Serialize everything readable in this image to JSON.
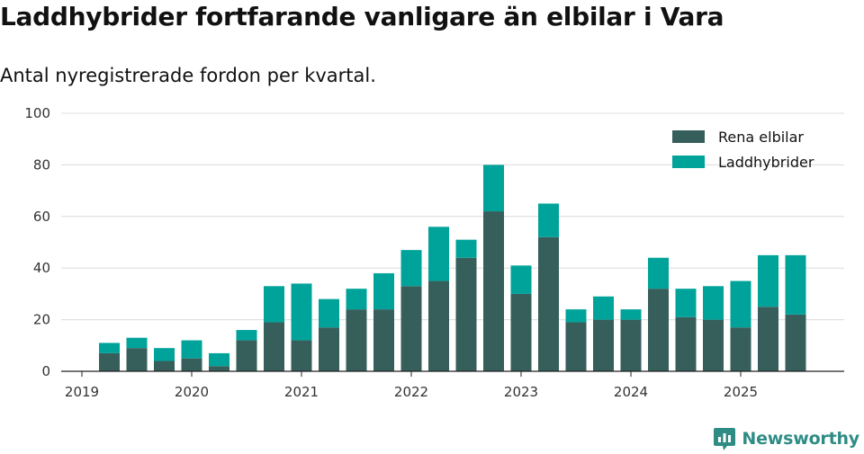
{
  "title": "Laddhybrider fortfarande vanligare än elbilar i Vara",
  "subtitle": "Antal nyregistrerade fordon per kvartal.",
  "brand": "Newsworthy",
  "chart_data": {
    "type": "bar",
    "stacked": true,
    "title": "Laddhybrider fortfarande vanligare än elbilar i Vara",
    "subtitle": "Antal nyregistrerade fordon per kvartal.",
    "xlabel": "",
    "ylabel": "",
    "ylim": [
      0,
      100
    ],
    "yticks": [
      0,
      20,
      40,
      60,
      80,
      100
    ],
    "xticks": [
      "2019",
      "2020",
      "2021",
      "2022",
      "2023",
      "2024",
      "2025"
    ],
    "grid": true,
    "legend_position": "top-right",
    "categories": [
      "2019 Q2",
      "2019 Q3",
      "2019 Q4",
      "2020 Q1",
      "2020 Q2",
      "2020 Q3",
      "2020 Q4",
      "2021 Q1",
      "2021 Q2",
      "2021 Q3",
      "2021 Q4",
      "2022 Q1",
      "2022 Q2",
      "2022 Q3",
      "2022 Q4",
      "2023 Q1",
      "2023 Q2",
      "2023 Q3",
      "2023 Q4",
      "2024 Q1",
      "2024 Q2",
      "2024 Q3",
      "2024 Q4",
      "2025 Q1",
      "2025 Q2",
      "2025 Q3"
    ],
    "series": [
      {
        "name": "Rena elbilar",
        "color": "#365f5b",
        "values": [
          7,
          9,
          4,
          5,
          2,
          12,
          19,
          12,
          17,
          24,
          24,
          33,
          35,
          44,
          62,
          30,
          52,
          19,
          20,
          20,
          32,
          21,
          20,
          17,
          25,
          22
        ]
      },
      {
        "name": "Laddhybrider",
        "color": "#00a39a",
        "values": [
          4,
          4,
          5,
          7,
          5,
          4,
          14,
          22,
          11,
          8,
          14,
          14,
          21,
          7,
          18,
          11,
          13,
          5,
          9,
          4,
          12,
          11,
          13,
          18,
          20,
          23
        ]
      }
    ]
  }
}
